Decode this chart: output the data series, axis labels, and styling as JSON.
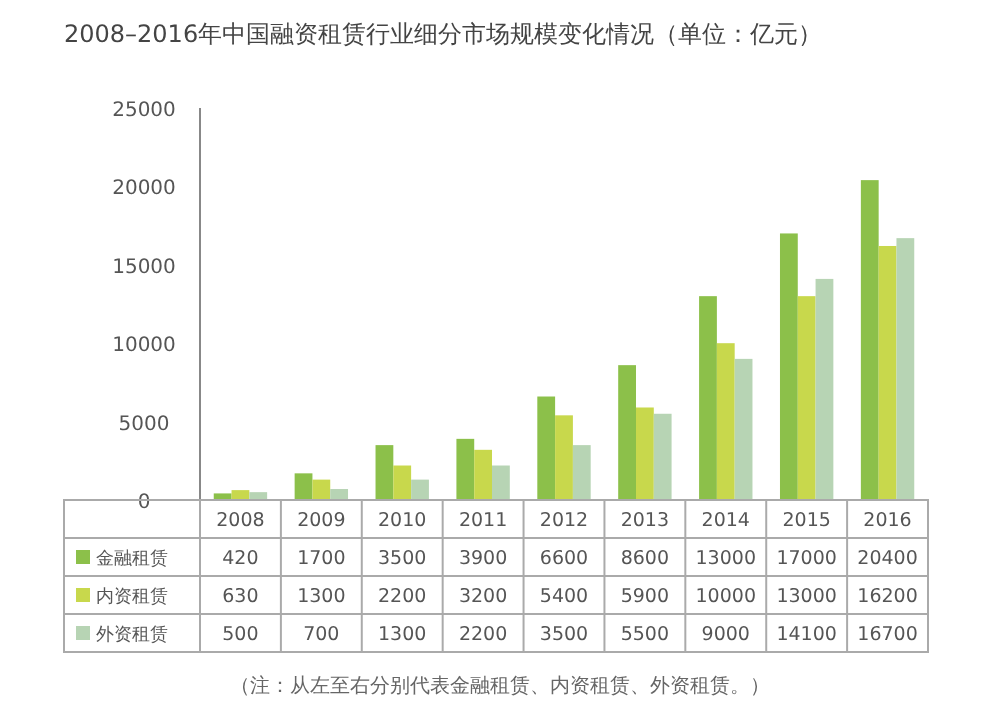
{
  "chart_data": {
    "type": "bar",
    "title": "2008–2016年中国融资租赁行业细分市场规模变化情况（单位：亿元）",
    "categories": [
      "2008",
      "2009",
      "2010",
      "2011",
      "2012",
      "2013",
      "2014",
      "2015",
      "2016"
    ],
    "series": [
      {
        "name": "金融租赁",
        "color": "#8cc04a",
        "values": [
          420,
          1700,
          3500,
          3900,
          6600,
          8600,
          13000,
          17000,
          20400
        ]
      },
      {
        "name": "内资租赁",
        "color": "#c8d84c",
        "values": [
          630,
          1300,
          2200,
          3200,
          5400,
          5900,
          10000,
          13000,
          16200
        ]
      },
      {
        "name": "外资租赁",
        "color": "#b7d4b4",
        "values": [
          500,
          700,
          1300,
          2200,
          3500,
          5500,
          9000,
          14100,
          16700
        ]
      }
    ],
    "ylim": [
      0,
      25000
    ],
    "yticks": [
      0,
      5000,
      10000,
      15000,
      20000,
      25000
    ],
    "grid": false,
    "legend": "bottom",
    "data_labels": true,
    "annotations": [
      "（注：从左至右分别代表金融租赁、内资租赁、外资租赁。）"
    ]
  }
}
